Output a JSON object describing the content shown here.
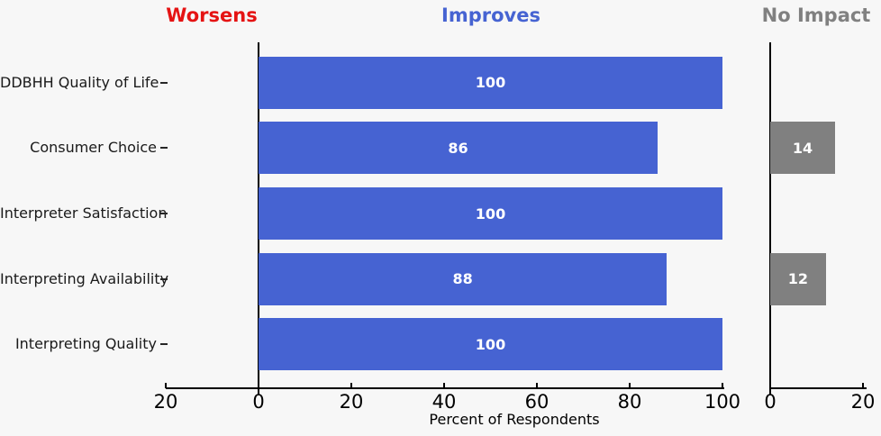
{
  "headers": {
    "worsens": "Worsens",
    "improves": "Improves",
    "no_impact": "No Impact"
  },
  "colors": {
    "worsens_red": "#e51313",
    "improves_blue": "#4663d2",
    "no_impact_gray": "#808080",
    "background": "#f7f7f7",
    "axis": "#000000",
    "bar_value_text": "#ffffff"
  },
  "chart_data": {
    "type": "bar",
    "orientation": "horizontal",
    "xlabel": "Percent of Respondents",
    "grid": false,
    "categories": [
      "DDBHH Quality of Life",
      "Consumer Choice",
      "Interpreter Satisfaction",
      "Interpreting Availability",
      "Interpreting Quality"
    ],
    "series": [
      {
        "name": "Worsens",
        "color": "#e51313",
        "values": [
          0,
          0,
          0,
          0,
          0
        ]
      },
      {
        "name": "Improves",
        "color": "#4663d2",
        "values": [
          100,
          86,
          100,
          88,
          100
        ]
      },
      {
        "name": "No Impact",
        "color": "#808080",
        "values": [
          0,
          14,
          0,
          12,
          0
        ]
      }
    ],
    "value_labels_shown_on_nonzero_bars": true,
    "main_axis": {
      "range": [
        -20,
        100
      ],
      "ticks": [
        -20,
        0,
        20,
        40,
        60,
        80,
        100
      ],
      "tick_labels": [
        "20",
        "0",
        "20",
        "40",
        "60",
        "80",
        "100"
      ]
    },
    "no_impact_axis": {
      "range": [
        0,
        20
      ],
      "ticks": [
        0,
        20
      ],
      "tick_labels": [
        "0",
        "20"
      ]
    }
  }
}
